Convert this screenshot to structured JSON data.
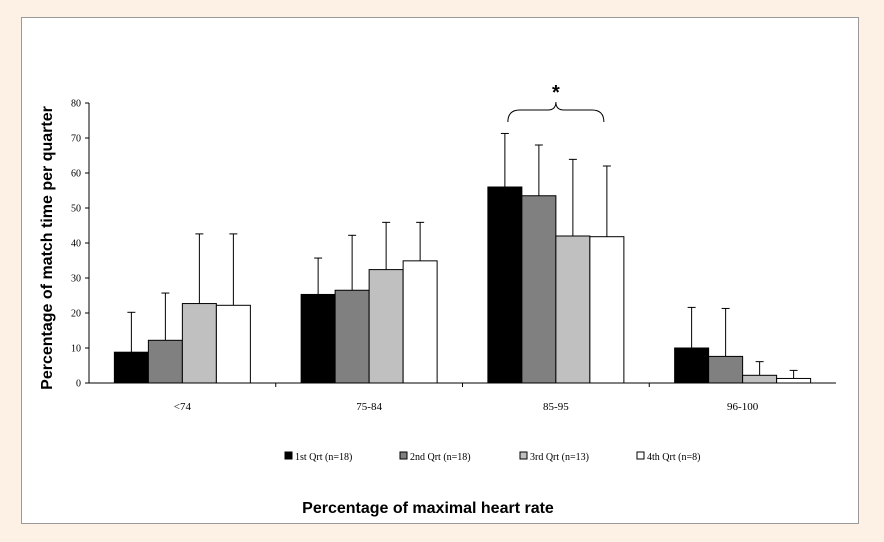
{
  "chart_data": {
    "type": "bar",
    "title": "",
    "xlabel": "Percentage of maximal heart rate",
    "ylabel": "Percentage of match time per quarter",
    "ylim": [
      0,
      80
    ],
    "yticks": [
      "0",
      "10",
      "20",
      "30",
      "40",
      "50",
      "60",
      "70",
      "80"
    ],
    "grid": false,
    "legend_position": "bottom",
    "categories": [
      "<74",
      "75-84",
      "85-95",
      "96-100"
    ],
    "series": [
      {
        "name": "1st Qrt (n=18)",
        "color": "#000000",
        "values": [
          8.8,
          25.3,
          56.0,
          10.0
        ],
        "error_upper": [
          20.2,
          35.7,
          71.3,
          21.6
        ]
      },
      {
        "name": "2nd Qrt (n=18)",
        "color": "#808080",
        "values": [
          12.2,
          26.5,
          53.5,
          7.6
        ],
        "error_upper": [
          25.7,
          42.2,
          68.0,
          21.3
        ]
      },
      {
        "name": "3rd Qrt (n=13)",
        "color": "#c0c0c0",
        "values": [
          22.7,
          32.4,
          42.0,
          2.2
        ],
        "error_upper": [
          42.6,
          45.9,
          63.9,
          6.1
        ]
      },
      {
        "name": "4th Qrt (n=8)",
        "color": "#ffffff",
        "values": [
          22.2,
          34.9,
          41.8,
          1.3
        ],
        "error_upper": [
          42.6,
          45.9,
          62.0,
          3.6
        ]
      }
    ],
    "annotations": [
      {
        "text": "*",
        "category": "85-95",
        "bracket": true
      }
    ]
  }
}
